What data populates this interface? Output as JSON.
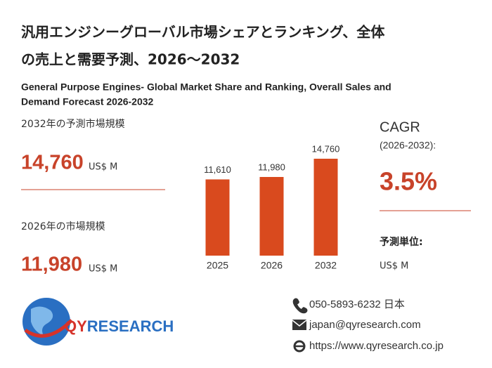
{
  "header": {
    "title": [
      "汎用エンジンーグローバル市場シェアとランキング、全体",
      "の売上と需要予測、2026～2032"
    ],
    "subtitle": [
      "General Purpose Engines- Global Market Share and Ranking, Overall Sales and",
      "Demand Forecast 2026-2032"
    ]
  },
  "stats": {
    "forecast_label": "2032年の予測市場規模",
    "forecast_value": "14,760",
    "forecast_unit": "US$ M",
    "current_label": "2026年の市場規模",
    "current_value": "11,980",
    "current_unit": "US$ M",
    "cagr_title": "CAGR",
    "cagr_period": "(2026-2032):",
    "cagr_value": "3.5%",
    "unit_label": "予測単位:",
    "unit_value": "US$ M"
  },
  "chart_data": {
    "type": "bar",
    "categories": [
      "2025",
      "2026",
      "2032"
    ],
    "values": [
      11610,
      11980,
      14760
    ],
    "value_labels": [
      "11,610",
      "11,980",
      "14,760"
    ],
    "color": "#d94a1e"
  },
  "contact": {
    "phone": "050-5893-6232 日本",
    "email": "japan@qyresearch.com",
    "web": "https://www.qyresearch.co.jp"
  },
  "logo": [
    "QY",
    "RESEARCH"
  ]
}
